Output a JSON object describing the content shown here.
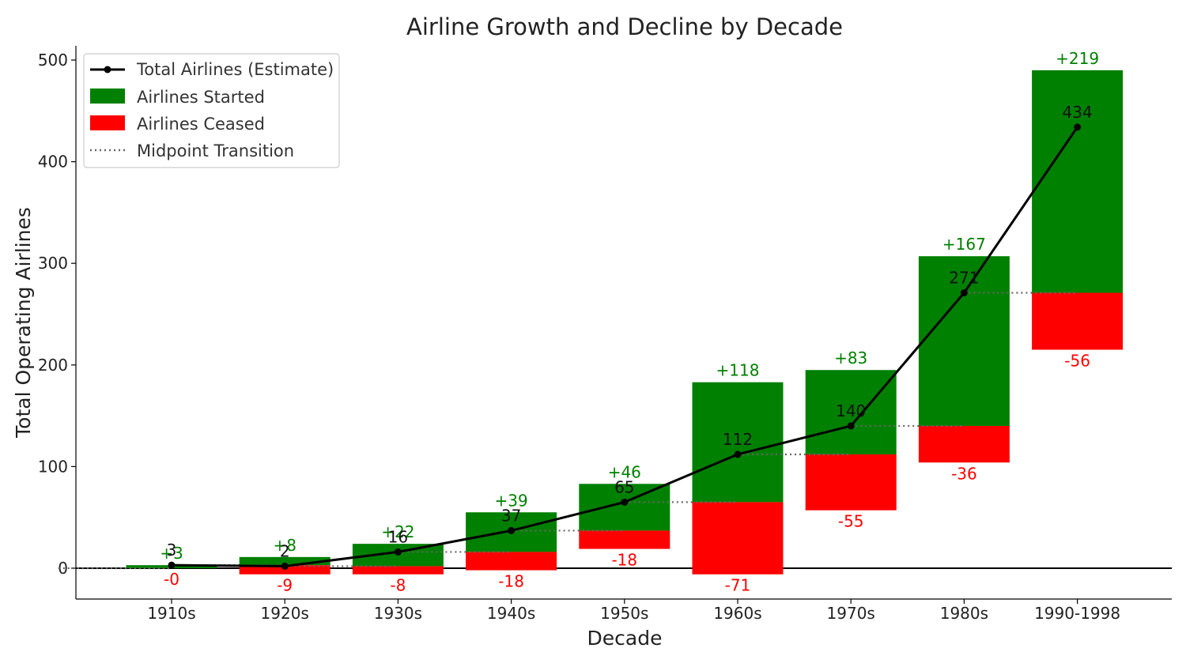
{
  "chart_data": {
    "type": "bar",
    "title": "Airline Growth and Decline by Decade",
    "xlabel": "Decade",
    "ylabel": "Total Operating Airlines",
    "ylim": [
      -30,
      510
    ],
    "yticks": [
      0,
      100,
      200,
      300,
      400,
      500
    ],
    "categories": [
      "1910s",
      "1920s",
      "1930s",
      "1940s",
      "1950s",
      "1960s",
      "1970s",
      "1980s",
      "1990-1998"
    ],
    "start_totals": [
      0,
      3,
      2,
      16,
      37,
      65,
      112,
      140,
      271
    ],
    "totals": [
      3,
      2,
      16,
      37,
      65,
      112,
      140,
      271,
      434
    ],
    "started": [
      3,
      8,
      22,
      39,
      46,
      118,
      83,
      167,
      219
    ],
    "ceased": [
      0,
      9,
      8,
      18,
      18,
      71,
      55,
      36,
      56
    ],
    "started_labels": [
      "+3",
      "+8",
      "+22",
      "+39",
      "+46",
      "+118",
      "+83",
      "+167",
      "+219"
    ],
    "ceased_labels": [
      "-0",
      "-9",
      "-8",
      "-18",
      "-18",
      "-71",
      "-55",
      "-36",
      "-56"
    ],
    "total_labels": [
      "3",
      "2",
      "16",
      "37",
      "65",
      "112",
      "140",
      "271",
      "434"
    ],
    "legend": {
      "placement": "top-left",
      "entries": [
        "Total Airlines (Estimate)",
        "Airlines Started",
        "Airlines Ceased",
        "Midpoint Transition"
      ]
    },
    "colors": {
      "started": "#008000",
      "ceased": "#ff0000",
      "total_line": "#000000",
      "transition": "#666666"
    },
    "grid": false
  }
}
